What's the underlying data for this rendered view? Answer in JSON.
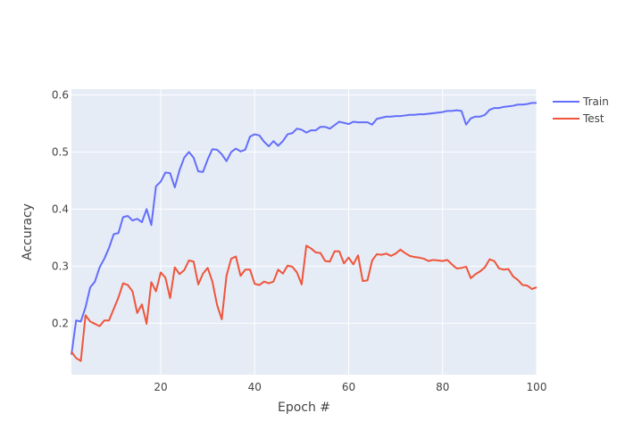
{
  "chart_data": {
    "type": "line",
    "title": "",
    "xlabel": "Epoch #",
    "ylabel": "Accuracy",
    "xlim": [
      1,
      100
    ],
    "ylim": [
      0.11,
      0.61
    ],
    "x_ticks": [
      20,
      40,
      60,
      80,
      100
    ],
    "y_ticks": [
      0.2,
      0.3,
      0.4,
      0.5,
      0.6
    ],
    "grid": true,
    "legend_position": "right",
    "background_color": "#e5ecf6",
    "series": [
      {
        "name": "Train",
        "color": "#636efa",
        "x": [
          1,
          2,
          3,
          4,
          5,
          6,
          7,
          8,
          9,
          10,
          11,
          12,
          13,
          14,
          15,
          16,
          17,
          18,
          19,
          20,
          21,
          22,
          23,
          24,
          25,
          26,
          27,
          28,
          29,
          30,
          31,
          32,
          33,
          34,
          35,
          36,
          37,
          38,
          39,
          40,
          41,
          42,
          43,
          44,
          45,
          46,
          47,
          48,
          49,
          50,
          51,
          52,
          53,
          54,
          55,
          56,
          57,
          58,
          59,
          60,
          61,
          62,
          63,
          64,
          65,
          66,
          67,
          68,
          69,
          70,
          71,
          72,
          73,
          74,
          75,
          76,
          77,
          78,
          79,
          80,
          81,
          82,
          83,
          84,
          85,
          86,
          87,
          88,
          89,
          90,
          91,
          92,
          93,
          94,
          95,
          96,
          97,
          98,
          99,
          100
        ],
        "values": [
          0.145,
          0.205,
          0.203,
          0.228,
          0.263,
          0.273,
          0.298,
          0.313,
          0.332,
          0.356,
          0.358,
          0.386,
          0.388,
          0.38,
          0.383,
          0.377,
          0.4,
          0.372,
          0.44,
          0.448,
          0.464,
          0.463,
          0.438,
          0.468,
          0.49,
          0.5,
          0.49,
          0.466,
          0.465,
          0.487,
          0.505,
          0.504,
          0.496,
          0.484,
          0.5,
          0.506,
          0.501,
          0.504,
          0.527,
          0.531,
          0.529,
          0.518,
          0.51,
          0.519,
          0.511,
          0.519,
          0.531,
          0.533,
          0.541,
          0.539,
          0.534,
          0.538,
          0.538,
          0.544,
          0.544,
          0.541,
          0.547,
          0.553,
          0.551,
          0.549,
          0.553,
          0.552,
          0.552,
          0.552,
          0.548,
          0.558,
          0.56,
          0.562,
          0.562,
          0.563,
          0.563,
          0.564,
          0.565,
          0.565,
          0.566,
          0.566,
          0.567,
          0.568,
          0.569,
          0.57,
          0.572,
          0.572,
          0.573,
          0.572,
          0.548,
          0.559,
          0.562,
          0.562,
          0.565,
          0.574,
          0.577,
          0.577,
          0.579,
          0.58,
          0.581,
          0.583,
          0.583,
          0.584,
          0.586,
          0.586
        ]
      },
      {
        "name": "Test",
        "color": "#ef553b",
        "x": [
          1,
          2,
          3,
          4,
          5,
          6,
          7,
          8,
          9,
          10,
          11,
          12,
          13,
          14,
          15,
          16,
          17,
          18,
          19,
          20,
          21,
          22,
          23,
          24,
          25,
          26,
          27,
          28,
          29,
          30,
          31,
          32,
          33,
          34,
          35,
          36,
          37,
          38,
          39,
          40,
          41,
          42,
          43,
          44,
          45,
          46,
          47,
          48,
          49,
          50,
          51,
          52,
          53,
          54,
          55,
          56,
          57,
          58,
          59,
          60,
          61,
          62,
          63,
          64,
          65,
          66,
          67,
          68,
          69,
          70,
          71,
          72,
          73,
          74,
          75,
          76,
          77,
          78,
          79,
          80,
          81,
          82,
          83,
          84,
          85,
          86,
          87,
          88,
          89,
          90,
          91,
          92,
          93,
          94,
          95,
          96,
          97,
          98,
          99,
          100
        ],
        "values": [
          0.15,
          0.139,
          0.134,
          0.214,
          0.203,
          0.199,
          0.195,
          0.205,
          0.205,
          0.225,
          0.245,
          0.27,
          0.267,
          0.256,
          0.218,
          0.233,
          0.199,
          0.272,
          0.256,
          0.289,
          0.28,
          0.244,
          0.298,
          0.286,
          0.293,
          0.31,
          0.308,
          0.268,
          0.287,
          0.297,
          0.273,
          0.232,
          0.207,
          0.283,
          0.313,
          0.317,
          0.283,
          0.294,
          0.294,
          0.269,
          0.267,
          0.273,
          0.27,
          0.273,
          0.294,
          0.287,
          0.301,
          0.299,
          0.289,
          0.268,
          0.336,
          0.331,
          0.324,
          0.323,
          0.309,
          0.308,
          0.326,
          0.326,
          0.305,
          0.315,
          0.303,
          0.319,
          0.274,
          0.275,
          0.31,
          0.321,
          0.32,
          0.322,
          0.318,
          0.322,
          0.329,
          0.323,
          0.318,
          0.316,
          0.315,
          0.313,
          0.309,
          0.311,
          0.31,
          0.309,
          0.311,
          0.303,
          0.296,
          0.297,
          0.299,
          0.279,
          0.286,
          0.291,
          0.298,
          0.312,
          0.309,
          0.296,
          0.294,
          0.295,
          0.282,
          0.276,
          0.267,
          0.266,
          0.26,
          0.263
        ]
      }
    ]
  }
}
